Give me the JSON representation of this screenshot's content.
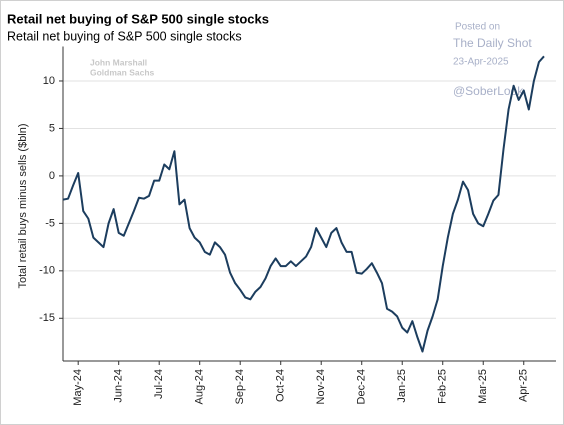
{
  "chart_data": {
    "type": "line",
    "title": "Retail net buying of S&P 500 single stocks",
    "subtitle": "Retail net buying of S&P 500 single stocks",
    "y_label": "Total retail buys minus sells ($bln)",
    "annotations": [
      "John Marshall",
      "Goldman Sachs",
      "Posted on",
      "The Daily Shot",
      "23-Apr-2025",
      "@SoberLook"
    ],
    "categories": [
      null,
      null,
      null,
      "May-24",
      null,
      null,
      null,
      null,
      null,
      null,
      null,
      "Jun-24",
      null,
      null,
      null,
      null,
      null,
      null,
      null,
      "Jul-24",
      null,
      null,
      null,
      null,
      null,
      null,
      null,
      "Aug-24",
      null,
      null,
      null,
      null,
      null,
      null,
      null,
      "Sep-24",
      null,
      null,
      null,
      null,
      null,
      null,
      null,
      "Oct-24",
      null,
      null,
      null,
      null,
      null,
      null,
      null,
      "Nov-24",
      null,
      null,
      null,
      null,
      null,
      null,
      null,
      "Dec-24",
      null,
      null,
      null,
      null,
      null,
      null,
      null,
      "Jan-25",
      null,
      null,
      null,
      null,
      null,
      null,
      null,
      "Feb-25",
      null,
      null,
      null,
      null,
      null,
      null,
      null,
      "Mar-25",
      null,
      null,
      null,
      null,
      null,
      null,
      null,
      "Apr-25",
      null,
      null,
      null,
      null
    ],
    "values": [
      -2.5,
      -2.4,
      -1,
      0.3,
      -3.7,
      -4.5,
      -6.5,
      -7,
      -7.5,
      -5,
      -3.5,
      -6,
      -6.3,
      -5,
      -3.7,
      -2.3,
      -2.4,
      -2.1,
      -0.5,
      -0.5,
      1.2,
      0.7,
      2.6,
      -3,
      -2.5,
      -5.5,
      -6.5,
      -7,
      -8,
      -8.3,
      -7,
      -7.5,
      -8.3,
      -10.2,
      -11.3,
      -12,
      -12.8,
      -13,
      -12.2,
      -11.7,
      -10.8,
      -9.5,
      -8.7,
      -9.5,
      -9.5,
      -9,
      -9.5,
      -9,
      -8.5,
      -7.5,
      -5.5,
      -6.5,
      -7.5,
      -6,
      -5.5,
      -7,
      -8,
      -8,
      -10.2,
      -10.3,
      -9.8,
      -9.2,
      -10.2,
      -11.3,
      -14,
      -14.3,
      -14.8,
      -16,
      -16.5,
      -15.3,
      -17,
      -18.5,
      -16.3,
      -14.8,
      -13,
      -9.5,
      -6.5,
      -4,
      -2.5,
      -0.6,
      -1.5,
      -4,
      -5,
      -5.3,
      -4,
      -2.6,
      -2,
      2.8,
      7,
      9.5,
      8,
      9,
      7,
      10,
      12,
      12.6
    ],
    "color": "#1c3d5e",
    "ylim": [
      -19.5,
      13
    ],
    "yticks": [
      -15,
      -10,
      -5,
      0,
      5,
      10
    ],
    "grid": true
  }
}
